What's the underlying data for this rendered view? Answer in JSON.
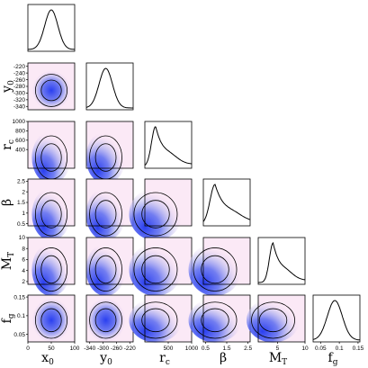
{
  "chart_data": {
    "type": "corner",
    "parameters": [
      {
        "id": "x0",
        "label": "x",
        "sub": "0",
        "range": [
          0,
          100
        ],
        "ticks": [
          0,
          50,
          100
        ],
        "mean": 50,
        "sd": 14,
        "marg_skew": 0,
        "ticklabels": [
          "0",
          "50",
          "100"
        ]
      },
      {
        "id": "y0",
        "label": "y",
        "sub": "0",
        "range": [
          -350,
          -210
        ],
        "ticks": [
          -340,
          -320,
          -300,
          -280,
          -260,
          -240,
          -220
        ],
        "mean": -292,
        "sd": 20,
        "marg_skew": 0,
        "ticklabels": [
          "-340",
          "-320",
          "-300",
          "-280",
          "-260",
          "-240",
          "-220"
        ],
        "xticklabels": [
          "-340",
          "-300",
          "-260",
          "-220"
        ],
        "xticks": [
          -340,
          -300,
          -260,
          -220
        ]
      },
      {
        "id": "rc",
        "label": "r",
        "sub": "c",
        "range": [
          0,
          1000
        ],
        "ticks": [
          400,
          600,
          800,
          1000
        ],
        "mean": 230,
        "sd": 260,
        "marg_skew": 1,
        "ticklabels": [
          "400",
          "600",
          "800",
          "1000"
        ],
        "xticklabels": [
          "500",
          "1000"
        ],
        "xticks": [
          500,
          1000
        ]
      },
      {
        "id": "beta",
        "label": "β",
        "sub": "",
        "range": [
          0.4,
          2.6
        ],
        "ticks": [
          0.5,
          1,
          1.5,
          2,
          2.5
        ],
        "mean": 0.95,
        "sd": 0.7,
        "marg_skew": 1,
        "ticklabels": [
          "0.5",
          "1",
          "1.5",
          "2",
          "2.5"
        ],
        "xticklabels": [
          "0.5",
          "1.5",
          "2.5"
        ],
        "xticks": [
          0.5,
          1.5,
          2.5
        ]
      },
      {
        "id": "MT",
        "label": "M",
        "sub": "T",
        "range": [
          1.5,
          10
        ],
        "ticks": [
          2,
          4,
          6,
          8,
          10
        ],
        "mean": 4.2,
        "sd": 2.0,
        "marg_skew": 1,
        "ticklabels": [
          "2",
          "4",
          "6",
          "8",
          "10"
        ],
        "xticklabels": [
          "5",
          "10"
        ],
        "xticks": [
          5,
          10
        ]
      },
      {
        "id": "fg",
        "label": "f",
        "sub": "g",
        "range": [
          0.03,
          0.155
        ],
        "ticks": [
          0.05,
          0.1,
          0.15
        ],
        "mean": 0.088,
        "sd": 0.02,
        "marg_skew": 0,
        "ticklabels": [
          "0.05",
          "0.1",
          "0.15"
        ]
      }
    ],
    "grid": false,
    "colors": {
      "density_high": "#2a3ff0",
      "density_low": "#f3d9ee",
      "contour": "#000000",
      "background": "#fbe9f6"
    }
  }
}
